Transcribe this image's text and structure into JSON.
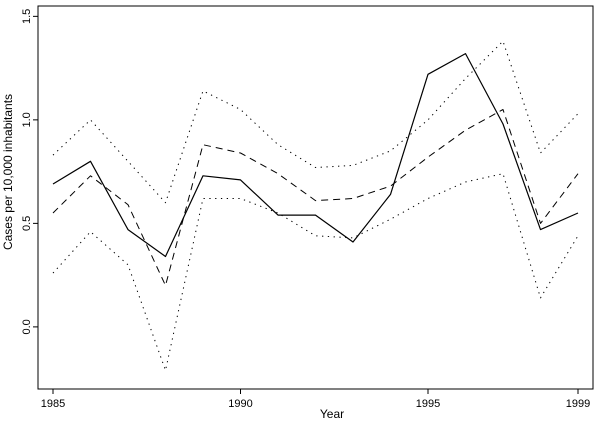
{
  "chart_data": {
    "type": "line",
    "title": "",
    "xlabel": "Year",
    "ylabel": "Cases per 10,000 inhabitants",
    "xlim": [
      1984.6,
      1999.4
    ],
    "ylim": [
      -0.3,
      1.55
    ],
    "x_ticks": [
      1985,
      1990,
      1995,
      1999
    ],
    "x_tick_labels": [
      "1985",
      "1990",
      "1995",
      "1999"
    ],
    "y_ticks": [
      0.0,
      0.5,
      1.0,
      1.5
    ],
    "y_tick_labels": [
      "0.0",
      "0.5",
      "1.0",
      "1.5"
    ],
    "grid": false,
    "legend": "none",
    "x": [
      1985,
      1986,
      1987,
      1988,
      1989,
      1990,
      1991,
      1992,
      1993,
      1994,
      1995,
      1996,
      1997,
      1998,
      1999
    ],
    "series": [
      {
        "style": "solid",
        "values": [
          0.69,
          0.8,
          0.47,
          0.34,
          0.73,
          0.71,
          0.54,
          0.54,
          0.41,
          0.64,
          1.22,
          1.32,
          0.98,
          0.47,
          0.55
        ]
      },
      {
        "style": "dashed",
        "values": [
          0.55,
          0.73,
          0.59,
          0.2,
          0.88,
          0.84,
          0.74,
          0.61,
          0.62,
          0.68,
          0.82,
          0.95,
          1.05,
          0.5,
          0.74
        ]
      },
      {
        "style": "dotted",
        "values": [
          0.83,
          1.0,
          0.8,
          0.6,
          1.14,
          1.05,
          0.88,
          0.77,
          0.78,
          0.85,
          1.0,
          1.2,
          1.38,
          0.84,
          1.03
        ]
      },
      {
        "style": "dotted",
        "values": [
          0.26,
          0.46,
          0.3,
          -0.21,
          0.62,
          0.62,
          0.55,
          0.44,
          0.43,
          0.52,
          0.62,
          0.7,
          0.74,
          0.14,
          0.44
        ]
      }
    ]
  }
}
